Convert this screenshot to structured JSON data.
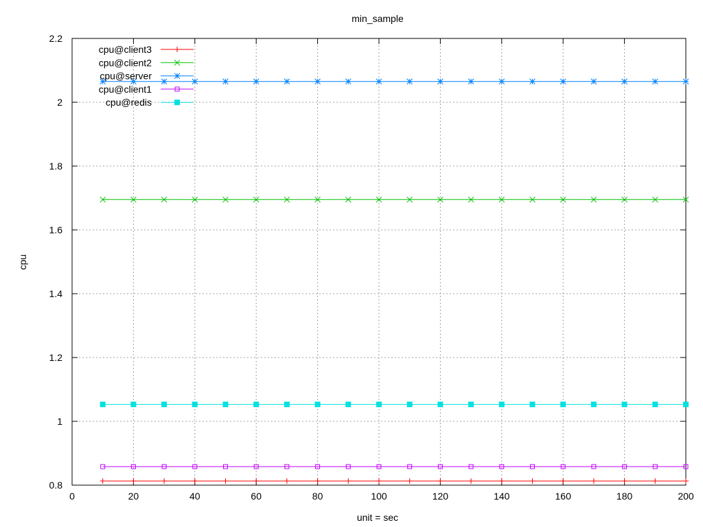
{
  "chart_data": {
    "type": "line",
    "title": "min_sample",
    "xlabel": "unit = sec",
    "ylabel": "cpu",
    "xlim": [
      0,
      200
    ],
    "ylim": [
      0.8,
      2.2
    ],
    "xticks": [
      0,
      20,
      40,
      60,
      80,
      100,
      120,
      140,
      160,
      180,
      200
    ],
    "yticks": [
      0.8,
      1,
      1.2,
      1.4,
      1.6,
      1.8,
      2,
      2.2
    ],
    "ytick_labels": [
      "0.8",
      "1",
      "1.2",
      "1.4",
      "1.6",
      "1.8",
      "2",
      "2.2"
    ],
    "grid": true,
    "legend_position": "top-left",
    "x": [
      10,
      20,
      30,
      40,
      50,
      60,
      70,
      80,
      90,
      100,
      110,
      120,
      130,
      140,
      150,
      160,
      170,
      180,
      190,
      200
    ],
    "series": [
      {
        "name": "cpu@client3",
        "color": "#ff0000",
        "marker": "plus",
        "values": [
          0.813,
          0.813,
          0.813,
          0.813,
          0.813,
          0.813,
          0.813,
          0.813,
          0.813,
          0.813,
          0.813,
          0.813,
          0.813,
          0.813,
          0.813,
          0.813,
          0.813,
          0.813,
          0.813,
          0.813
        ]
      },
      {
        "name": "cpu@client2",
        "color": "#00c000",
        "marker": "cross",
        "values": [
          1.695,
          1.695,
          1.695,
          1.695,
          1.695,
          1.695,
          1.695,
          1.695,
          1.695,
          1.695,
          1.695,
          1.695,
          1.695,
          1.695,
          1.695,
          1.695,
          1.695,
          1.695,
          1.695,
          1.695
        ]
      },
      {
        "name": "cpu@server",
        "color": "#0080ff",
        "marker": "star",
        "values": [
          2.065,
          2.065,
          2.065,
          2.065,
          2.065,
          2.065,
          2.065,
          2.065,
          2.065,
          2.065,
          2.065,
          2.065,
          2.065,
          2.065,
          2.065,
          2.065,
          2.065,
          2.065,
          2.065,
          2.065
        ]
      },
      {
        "name": "cpu@client1",
        "color": "#c000ff",
        "marker": "open-square",
        "values": [
          0.858,
          0.858,
          0.858,
          0.858,
          0.858,
          0.858,
          0.858,
          0.858,
          0.858,
          0.858,
          0.858,
          0.858,
          0.858,
          0.858,
          0.858,
          0.858,
          0.858,
          0.858,
          0.858,
          0.858
        ]
      },
      {
        "name": "cpu@redis",
        "color": "#00e0e0",
        "marker": "filled-square",
        "values": [
          1.053,
          1.053,
          1.053,
          1.053,
          1.053,
          1.053,
          1.053,
          1.053,
          1.053,
          1.053,
          1.053,
          1.053,
          1.053,
          1.053,
          1.053,
          1.053,
          1.053,
          1.053,
          1.053,
          1.053
        ]
      }
    ]
  }
}
